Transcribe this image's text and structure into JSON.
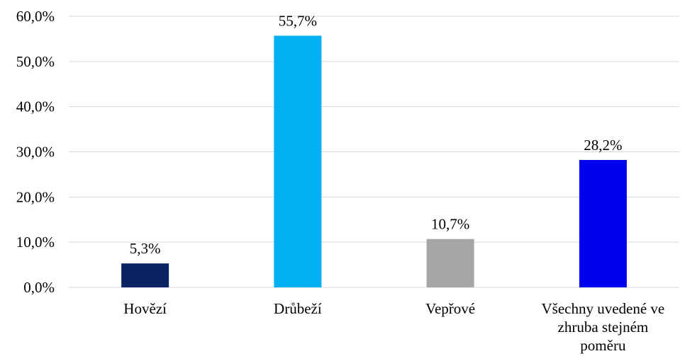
{
  "chart_data": {
    "type": "bar",
    "title": "",
    "xlabel": "",
    "ylabel": "",
    "categories": [
      [
        "Hovězí"
      ],
      [
        "Drůbeží"
      ],
      [
        "Vepřové"
      ],
      [
        "Všechny uvedené ve",
        "zhruba stejném",
        "poměru"
      ]
    ],
    "values": [
      5.3,
      55.7,
      10.7,
      28.2
    ],
    "value_labels": [
      "5,3%",
      "55,7%",
      "10,7%",
      "28,2%"
    ],
    "bar_colors": [
      "#0a2463",
      "#00b0f0",
      "#a6a6a6",
      "#0000ee"
    ],
    "ylim": [
      0,
      60
    ],
    "yticks": [
      0,
      10,
      20,
      30,
      40,
      50,
      60
    ],
    "ytick_labels": [
      "0,0%",
      "10,0%",
      "20,0%",
      "30,0%",
      "40,0%",
      "50,0%",
      "60,0%"
    ],
    "grid": true,
    "gridline_color": "#d9d9d9",
    "legend": "none"
  }
}
